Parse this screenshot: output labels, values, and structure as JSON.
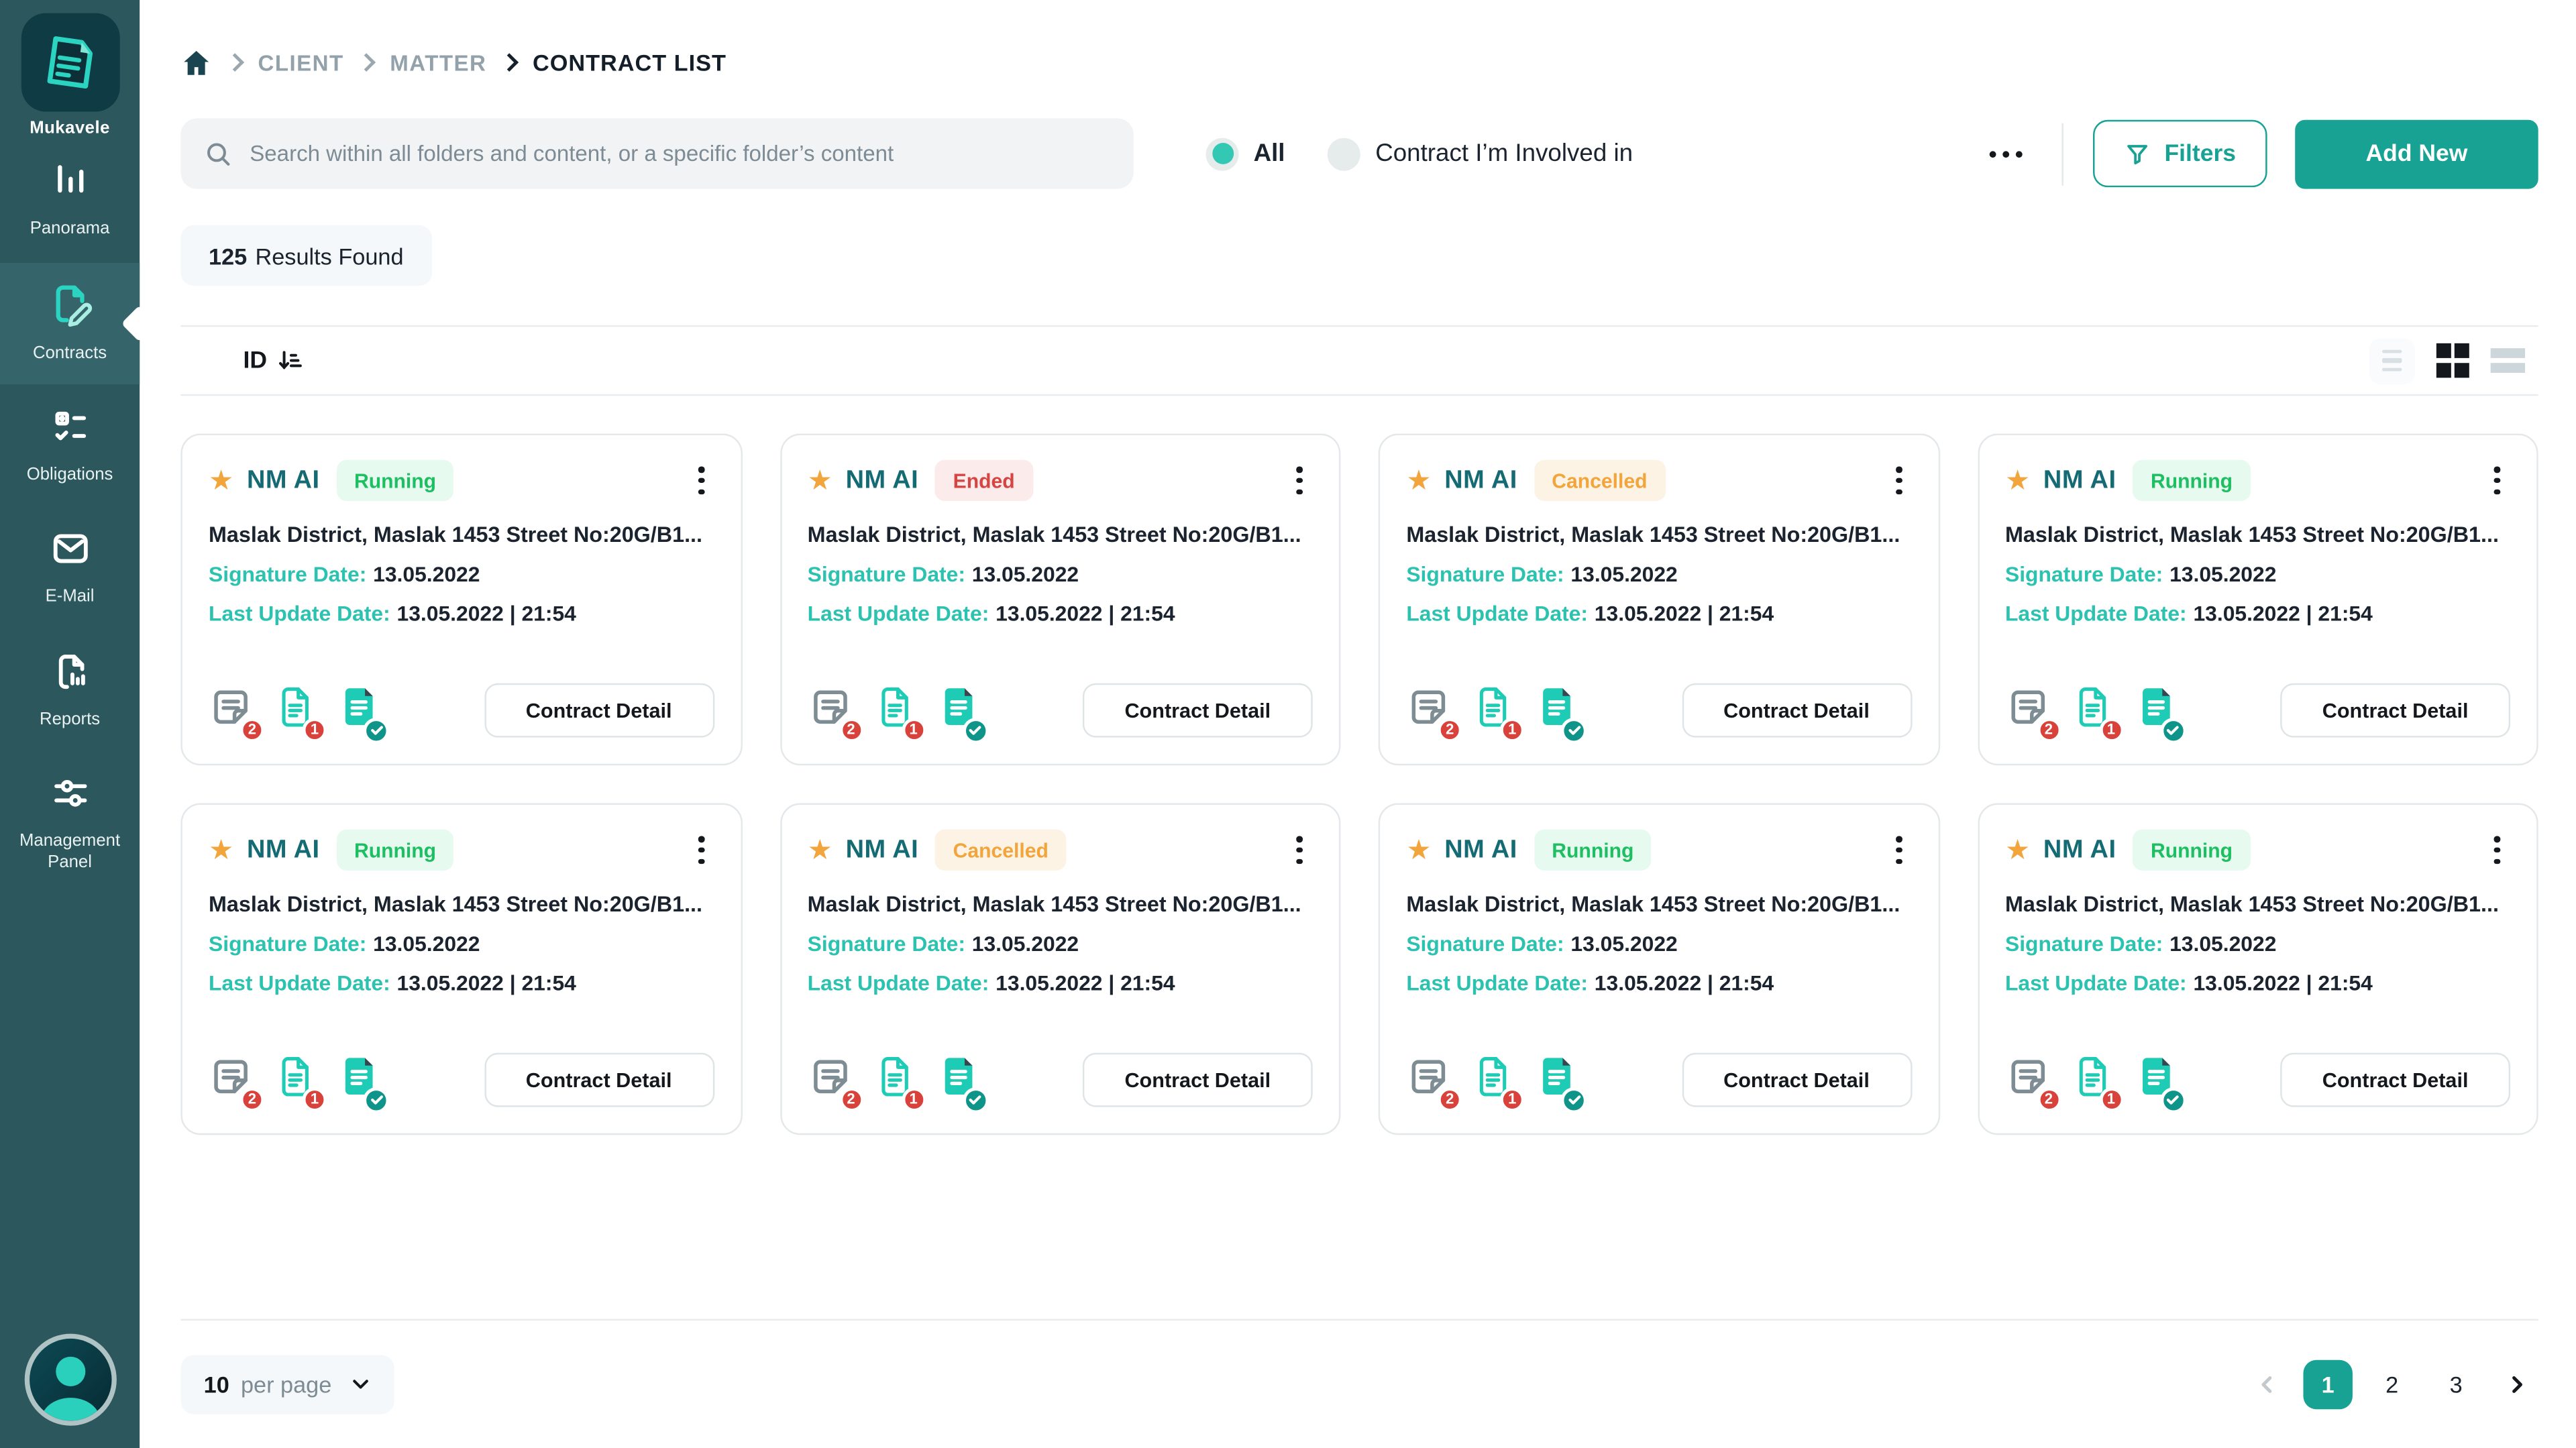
{
  "sidebar": {
    "app_name": "Mukavele",
    "items": [
      {
        "label": "Panorama",
        "icon": "bar-chart-icon",
        "active": false
      },
      {
        "label": "Contracts",
        "icon": "contract-edit-icon",
        "active": true
      },
      {
        "label": "Obligations",
        "icon": "checklist-icon",
        "active": false
      },
      {
        "label": "E-Mail",
        "icon": "envelope-icon",
        "active": false
      },
      {
        "label": "Reports",
        "icon": "report-document-icon",
        "active": false
      },
      {
        "label": "Management Panel",
        "icon": "sliders-icon",
        "active": false
      }
    ]
  },
  "breadcrumb": {
    "items": [
      "CLIENT",
      "MATTER",
      "CONTRACT LIST"
    ]
  },
  "search": {
    "placeholder": "Search within all folders and content, or a specific folder’s content",
    "value": ""
  },
  "scope_options": [
    {
      "label": "All",
      "selected": true
    },
    {
      "label": "Contract I’m Involved in",
      "selected": false
    }
  ],
  "toolbar": {
    "filters_label": "Filters",
    "add_new_label": "Add New"
  },
  "results": {
    "count": "125",
    "suffix": "Results Found"
  },
  "list_header": {
    "sort_label": "ID"
  },
  "card_labels": {
    "signature_label": "Signature Date:",
    "update_label": "Last Update Date:",
    "detail_label": "Contract Detail"
  },
  "cards": [
    {
      "title": "NM AI",
      "status": "Running",
      "status_type": "running",
      "address": "Maslak District, Maslak 1453 Street No:20G/B1...",
      "signature_value": "13.05.2022",
      "update_value": "13.05.2022 | 21:54",
      "note_count": "2",
      "doc_count": "1"
    },
    {
      "title": "NM AI",
      "status": "Ended",
      "status_type": "ended",
      "address": "Maslak District, Maslak 1453 Street No:20G/B1...",
      "signature_value": "13.05.2022",
      "update_value": "13.05.2022 | 21:54",
      "note_count": "2",
      "doc_count": "1"
    },
    {
      "title": "NM AI",
      "status": "Cancelled",
      "status_type": "cancelled",
      "address": "Maslak District, Maslak 1453 Street No:20G/B1...",
      "signature_value": "13.05.2022",
      "update_value": "13.05.2022 | 21:54",
      "note_count": "2",
      "doc_count": "1"
    },
    {
      "title": "NM AI",
      "status": "Running",
      "status_type": "running",
      "address": "Maslak District, Maslak 1453 Street No:20G/B1...",
      "signature_value": "13.05.2022",
      "update_value": "13.05.2022 | 21:54",
      "note_count": "2",
      "doc_count": "1"
    },
    {
      "title": "NM AI",
      "status": "Running",
      "status_type": "running",
      "address": "Maslak District, Maslak 1453 Street No:20G/B1...",
      "signature_value": "13.05.2022",
      "update_value": "13.05.2022 | 21:54",
      "note_count": "2",
      "doc_count": "1"
    },
    {
      "title": "NM AI",
      "status": "Cancelled",
      "status_type": "cancelled",
      "address": "Maslak District, Maslak 1453 Street No:20G/B1...",
      "signature_value": "13.05.2022",
      "update_value": "13.05.2022 | 21:54",
      "note_count": "2",
      "doc_count": "1"
    },
    {
      "title": "NM AI",
      "status": "Running",
      "status_type": "running",
      "address": "Maslak District, Maslak 1453 Street No:20G/B1...",
      "signature_value": "13.05.2022",
      "update_value": "13.05.2022 | 21:54",
      "note_count": "2",
      "doc_count": "1"
    },
    {
      "title": "NM AI",
      "status": "Running",
      "status_type": "running",
      "address": "Maslak District, Maslak 1453 Street No:20G/B1...",
      "signature_value": "13.05.2022",
      "update_value": "13.05.2022 | 21:54",
      "note_count": "2",
      "doc_count": "1"
    }
  ],
  "pagination": {
    "per_page": "10",
    "per_page_suffix": "per page",
    "pages": [
      "1",
      "2",
      "3"
    ],
    "active_page": "1"
  },
  "colors": {
    "sidebar_bg": "#2B575D",
    "sidebar_active_bg": "#35646A",
    "primary_teal": "#17A293",
    "label_teal": "#2CC2B0",
    "card_title_teal": "#156B74",
    "star_gold": "#F2A53C",
    "running_green": "#1EBE62",
    "ended_red": "#D64541",
    "cancelled_orange": "#F2A53C",
    "count_badge_red": "#D8423B",
    "check_badge_teal": "#0E9488",
    "text_dark": "#1A232E",
    "text_gray": "#7D8B94"
  }
}
